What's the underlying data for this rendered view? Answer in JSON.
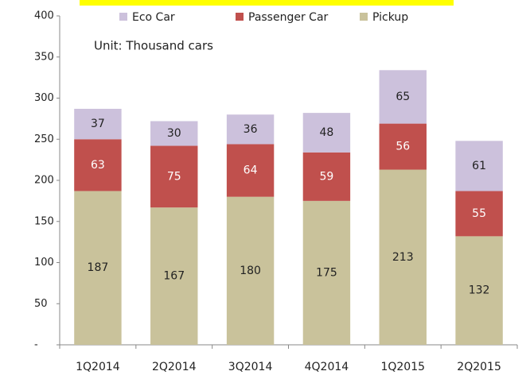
{
  "chart_data": {
    "type": "stacked_bar",
    "annotation": "Unit: Thousand  cars",
    "categories": [
      "1Q2014",
      "2Q2014",
      "3Q2014",
      "4Q2014",
      "1Q2015",
      "2Q2015"
    ],
    "series": [
      {
        "name": "Pickup",
        "color": "#c9c29b",
        "values": [
          187,
          167,
          180,
          175,
          213,
          132
        ]
      },
      {
        "name": "Passenger Car",
        "color": "#c0504d",
        "values": [
          63,
          75,
          64,
          59,
          56,
          55
        ]
      },
      {
        "name": "Eco Car",
        "color": "#ccc1dc",
        "values": [
          37,
          30,
          36,
          48,
          65,
          61
        ]
      }
    ],
    "ylim": [
      0,
      400
    ],
    "yticks": [
      {
        "value": 0,
        "label": "-"
      },
      50,
      100,
      150,
      200,
      250,
      300,
      350,
      400
    ],
    "grid": false,
    "legend": "top"
  }
}
